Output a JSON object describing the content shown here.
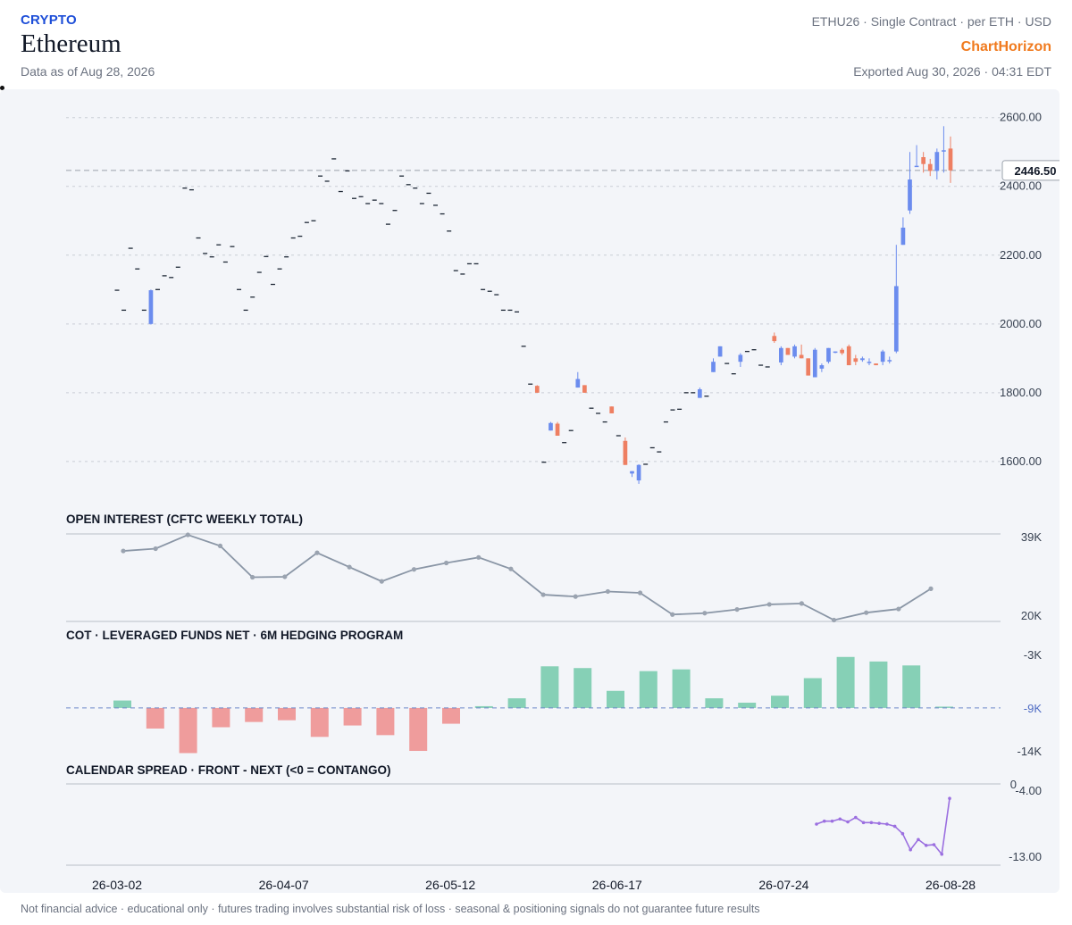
{
  "header": {
    "category": "CRYPTO",
    "name": "Ethereum",
    "data_as_of": "Data as of Aug 28, 2026",
    "contract": "ETHU26 · Single Contract · per ETH · USD",
    "brand": "ChartHorizon",
    "exported": "Exported Aug 30, 2026 · 04:31 EDT"
  },
  "footer": "Not financial advice · educational only · futures trading involves substantial risk of loss · seasonal & positioning signals do not guarantee future results",
  "colors": {
    "up": "#6b8cee",
    "down": "#ee7f62",
    "oi_line": "#8a96a6",
    "cot_pos": "#86d0b6",
    "cot_neg": "#ef9c9c",
    "spread": "#9b6fe0"
  },
  "chart_data": [
    {
      "type": "candlestick",
      "x_ticks": [
        "26-03-02",
        "26-04-07",
        "26-05-12",
        "26-06-17",
        "26-07-24",
        "26-08-28"
      ],
      "y_ticks": [
        "1600.00",
        "1800.00",
        "2000.00",
        "2200.00",
        "2400.00",
        "2600.00"
      ],
      "ylim": [
        1540,
        2620
      ],
      "last_price": 2446.5,
      "last_price_label": "2446.50",
      "grid": true,
      "candles": [
        [
          2098,
          2098,
          2098,
          2098
        ],
        [
          2040,
          2040,
          2040,
          2040
        ],
        [
          2220,
          2220,
          2220,
          2220
        ],
        [
          2160,
          2160,
          2160,
          2160
        ],
        [
          2040,
          2040,
          2040,
          2040
        ],
        [
          2000,
          2100,
          1998,
          2098
        ],
        [
          2100,
          2100,
          2100,
          2100
        ],
        [
          2140,
          2140,
          2140,
          2140
        ],
        [
          2135,
          2135,
          2135,
          2135
        ],
        [
          2165,
          2165,
          2165,
          2165
        ],
        [
          2395,
          2395,
          2395,
          2395
        ],
        [
          2390,
          2390,
          2390,
          2390
        ],
        [
          2250,
          2250,
          2250,
          2250
        ],
        [
          2205,
          2205,
          2205,
          2205
        ],
        [
          2195,
          2195,
          2195,
          2195
        ],
        [
          2230,
          2230,
          2230,
          2230
        ],
        [
          2180,
          2180,
          2180,
          2180
        ],
        [
          2225,
          2225,
          2225,
          2225
        ],
        [
          2100,
          2100,
          2100,
          2100
        ],
        [
          2040,
          2040,
          2040,
          2040
        ],
        [
          2078,
          2078,
          2078,
          2078
        ],
        [
          2150,
          2150,
          2150,
          2150
        ],
        [
          2196,
          2196,
          2196,
          2196
        ],
        [
          2115,
          2115,
          2115,
          2115
        ],
        [
          2160,
          2160,
          2160,
          2160
        ],
        [
          2195,
          2195,
          2195,
          2195
        ],
        [
          2250,
          2250,
          2250,
          2250
        ],
        [
          2255,
          2255,
          2255,
          2255
        ],
        [
          2295,
          2295,
          2295,
          2295
        ],
        [
          2300,
          2300,
          2300,
          2300
        ],
        [
          2430,
          2430,
          2430,
          2430
        ],
        [
          2415,
          2415,
          2415,
          2415
        ],
        [
          2480,
          2480,
          2480,
          2480
        ],
        [
          2385,
          2385,
          2385,
          2385
        ],
        [
          2445,
          2445,
          2445,
          2445
        ],
        [
          2365,
          2365,
          2365,
          2365
        ],
        [
          2370,
          2370,
          2370,
          2370
        ],
        [
          2350,
          2350,
          2350,
          2350
        ],
        [
          2360,
          2360,
          2360,
          2360
        ],
        [
          2350,
          2350,
          2350,
          2350
        ],
        [
          2290,
          2290,
          2290,
          2290
        ],
        [
          2330,
          2330,
          2330,
          2330
        ],
        [
          2430,
          2430,
          2430,
          2430
        ],
        [
          2405,
          2405,
          2405,
          2405
        ],
        [
          2395,
          2395,
          2395,
          2395
        ],
        [
          2350,
          2350,
          2350,
          2350
        ],
        [
          2380,
          2380,
          2380,
          2380
        ],
        [
          2345,
          2345,
          2345,
          2345
        ],
        [
          2320,
          2320,
          2320,
          2320
        ],
        [
          2270,
          2270,
          2270,
          2270
        ],
        [
          2155,
          2155,
          2155,
          2155
        ],
        [
          2145,
          2145,
          2145,
          2145
        ],
        [
          2175,
          2175,
          2175,
          2175
        ],
        [
          2175,
          2175,
          2175,
          2175
        ],
        [
          2100,
          2100,
          2100,
          2100
        ],
        [
          2095,
          2095,
          2095,
          2095
        ],
        [
          2085,
          2085,
          2085,
          2085
        ],
        [
          2040,
          2040,
          2040,
          2040
        ],
        [
          2040,
          2040,
          2040,
          2040
        ],
        [
          2035,
          2035,
          2035,
          2035
        ],
        [
          1935,
          1935,
          1935,
          1935
        ],
        [
          1825,
          1825,
          1825,
          1825
        ],
        [
          1820,
          1822,
          1800,
          1800
        ],
        [
          1598,
          1598,
          1598,
          1598
        ],
        [
          1690,
          1715,
          1690,
          1712
        ],
        [
          1710,
          1715,
          1675,
          1675
        ],
        [
          1655,
          1655,
          1655,
          1655
        ],
        [
          1690,
          1690,
          1690,
          1690
        ],
        [
          1815,
          1860,
          1815,
          1840
        ],
        [
          1822,
          1822,
          1800,
          1800
        ],
        [
          1755,
          1755,
          1755,
          1755
        ],
        [
          1740,
          1740,
          1740,
          1740
        ],
        [
          1715,
          1715,
          1715,
          1715
        ],
        [
          1760,
          1760,
          1740,
          1740
        ],
        [
          1675,
          1675,
          1675,
          1675
        ],
        [
          1660,
          1670,
          1590,
          1590
        ],
        [
          1565,
          1572,
          1555,
          1572
        ],
        [
          1545,
          1592,
          1535,
          1590
        ],
        [
          1592,
          1592,
          1592,
          1592
        ],
        [
          1640,
          1640,
          1640,
          1640
        ],
        [
          1628,
          1628,
          1628,
          1628
        ],
        [
          1715,
          1715,
          1715,
          1715
        ],
        [
          1750,
          1750,
          1750,
          1750
        ],
        [
          1752,
          1752,
          1752,
          1752
        ],
        [
          1800,
          1800,
          1800,
          1800
        ],
        [
          1800,
          1800,
          1800,
          1800
        ],
        [
          1785,
          1815,
          1785,
          1810
        ],
        [
          1790,
          1790,
          1790,
          1790
        ],
        [
          1860,
          1900,
          1860,
          1890
        ],
        [
          1905,
          1935,
          1905,
          1935
        ],
        [
          1885,
          1885,
          1885,
          1885
        ],
        [
          1855,
          1855,
          1855,
          1855
        ],
        [
          1890,
          1915,
          1875,
          1910
        ],
        [
          1920,
          1920,
          1920,
          1920
        ],
        [
          1925,
          1925,
          1925,
          1925
        ],
        [
          1880,
          1880,
          1880,
          1880
        ],
        [
          1875,
          1875,
          1875,
          1875
        ],
        [
          1965,
          1975,
          1945,
          1950
        ],
        [
          1888,
          1935,
          1880,
          1930
        ],
        [
          1930,
          1930,
          1910,
          1910
        ],
        [
          1905,
          1940,
          1900,
          1935
        ],
        [
          1910,
          1940,
          1900,
          1900
        ],
        [
          1900,
          1900,
          1850,
          1850
        ],
        [
          1845,
          1930,
          1845,
          1925
        ],
        [
          1870,
          1885,
          1860,
          1880
        ],
        [
          1890,
          1930,
          1885,
          1930
        ],
        [
          1918,
          1920,
          1915,
          1920
        ],
        [
          1925,
          1930,
          1910,
          1915
        ],
        [
          1935,
          1940,
          1880,
          1880
        ],
        [
          1900,
          1910,
          1880,
          1890
        ],
        [
          1895,
          1905,
          1890,
          1900
        ],
        [
          1890,
          1900,
          1880,
          1890
        ],
        [
          1885,
          1885,
          1880,
          1880
        ],
        [
          1890,
          1925,
          1880,
          1920
        ],
        [
          1895,
          1905,
          1885,
          1895
        ],
        [
          1920,
          2230,
          1915,
          2110
        ],
        [
          2230,
          2310,
          2230,
          2280
        ],
        [
          2330,
          2500,
          2320,
          2420
        ],
        [
          2460,
          2520,
          2460,
          2460
        ],
        [
          2485,
          2500,
          2440,
          2465
        ],
        [
          2465,
          2480,
          2430,
          2445
        ],
        [
          2445,
          2510,
          2420,
          2500
        ],
        [
          2505,
          2575,
          2440,
          2505
        ],
        [
          2510,
          2545,
          2410,
          2446.5
        ]
      ]
    },
    {
      "type": "line",
      "title": "OPEN INTEREST (CFTC WEEKLY TOTAL)",
      "y_ticks": [
        "39K",
        "20K"
      ],
      "ylim": [
        20000,
        39000
      ],
      "values": [
        35300,
        35800,
        38800,
        36400,
        29600,
        29700,
        34900,
        31800,
        28700,
        31300,
        32700,
        33900,
        31400,
        25800,
        25400,
        26500,
        26200,
        21500,
        21800,
        22600,
        23700,
        23900,
        20300,
        21900,
        22700,
        27100
      ]
    },
    {
      "type": "bar",
      "title": "COT · LEVERAGED FUNDS NET · 6M HEDGING PROGRAM",
      "y_ticks": [
        "-3K",
        "-9K",
        "-14K"
      ],
      "ylim": [
        -14000,
        -3000
      ],
      "baseline": -9000,
      "baseline_label": "-9K",
      "values": [
        -8150,
        -11350,
        -14150,
        -11200,
        -10600,
        -10400,
        -12300,
        -11000,
        -12100,
        -13900,
        -10800,
        -8800,
        -7900,
        -4250,
        -4450,
        -7050,
        -4800,
        -4600,
        -7900,
        -8400,
        -7600,
        -5600,
        -3180,
        -3700,
        -4150,
        -8850
      ]
    },
    {
      "type": "line",
      "title": "CALENDAR SPREAD · FRONT - NEXT (<0 = CONTANGO)",
      "y_ticks": [
        "0",
        "-4.00",
        "-13.00"
      ],
      "ylim": [
        -13.0,
        -4.0
      ],
      "zero_line": true,
      "values": [
        -8.5,
        -8.1,
        -8.1,
        -7.8,
        -8.2,
        -7.6,
        -8.3,
        -8.3,
        -8.4,
        -8.5,
        -8.8,
        -9.8,
        -12.0,
        -10.6,
        -11.4,
        -11.3,
        -12.6,
        -5.0
      ]
    }
  ]
}
